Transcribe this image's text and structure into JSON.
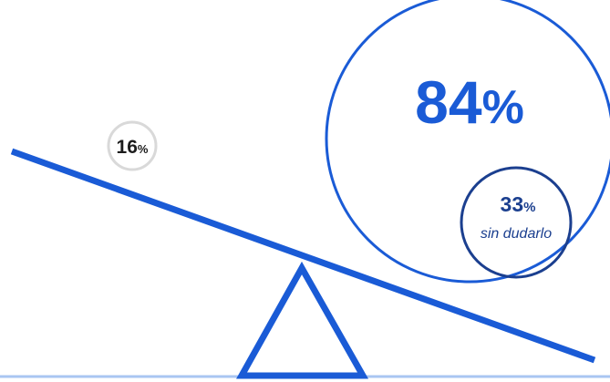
{
  "chart_data": {
    "type": "pie",
    "unit": "%",
    "values": {
      "left": 16,
      "right": 84,
      "right_subset": 33
    },
    "labels": {
      "left_value": "16",
      "right_value": "84",
      "right_subset_value": "33",
      "right_subset_caption": "sin dudarlo",
      "unit_symbol": "%"
    },
    "colors": {
      "primary_blue": "#1a5bd6",
      "dark_blue": "#1b3f8f",
      "light_grey": "#d9d9d9",
      "baseline": "#a9c6f2",
      "text": "#1c1c1c"
    }
  }
}
